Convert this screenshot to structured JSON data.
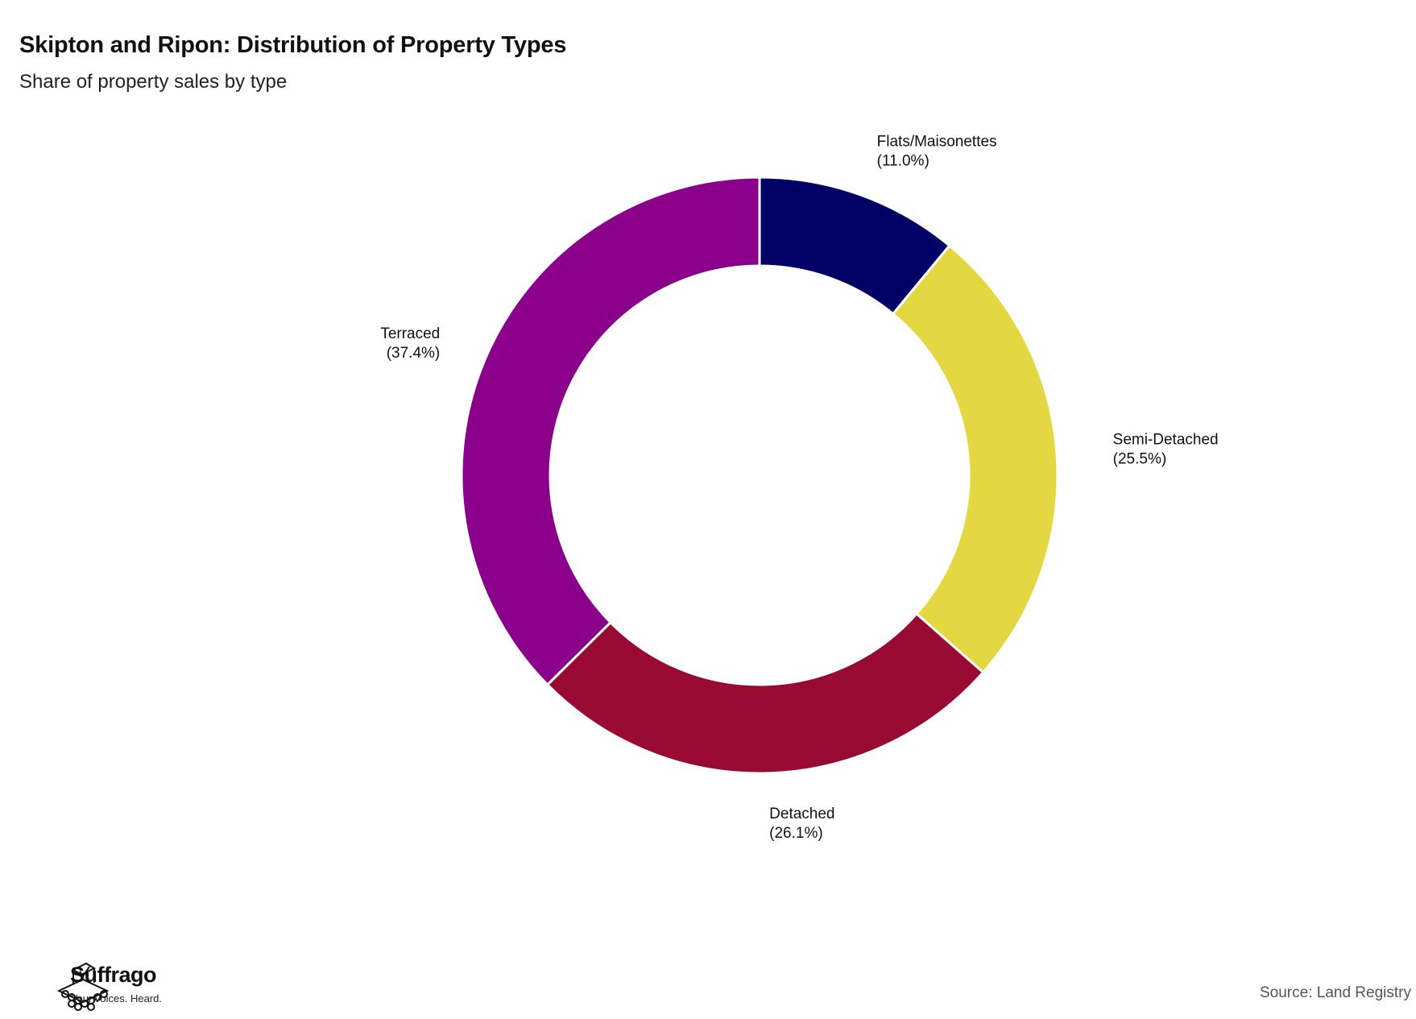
{
  "header": {
    "title": "Skipton and Ripon: Distribution of Property Types",
    "subtitle": "Share of property sales by type"
  },
  "footer": {
    "brand": "Suffrago",
    "tagline": "Your voices. Heard.",
    "source": "Source: Land Registry"
  },
  "chart_data": {
    "type": "pie",
    "title": "Skipton and Ripon: Distribution of Property Types",
    "subtitle": "Share of property sales by type",
    "donut": true,
    "start": "top, clockwise",
    "slices": [
      {
        "label": "Flats/Maisonettes",
        "value": 11.0,
        "display": "(11.0%)",
        "color": "#000066"
      },
      {
        "label": "Semi-Detached",
        "value": 25.5,
        "display": "(25.5%)",
        "color": "#E3D742"
      },
      {
        "label": "Detached",
        "value": 26.1,
        "display": "(26.1%)",
        "color": "#990A33"
      },
      {
        "label": "Terraced",
        "value": 37.4,
        "display": "(37.4%)",
        "color": "#8B008B"
      }
    ]
  }
}
